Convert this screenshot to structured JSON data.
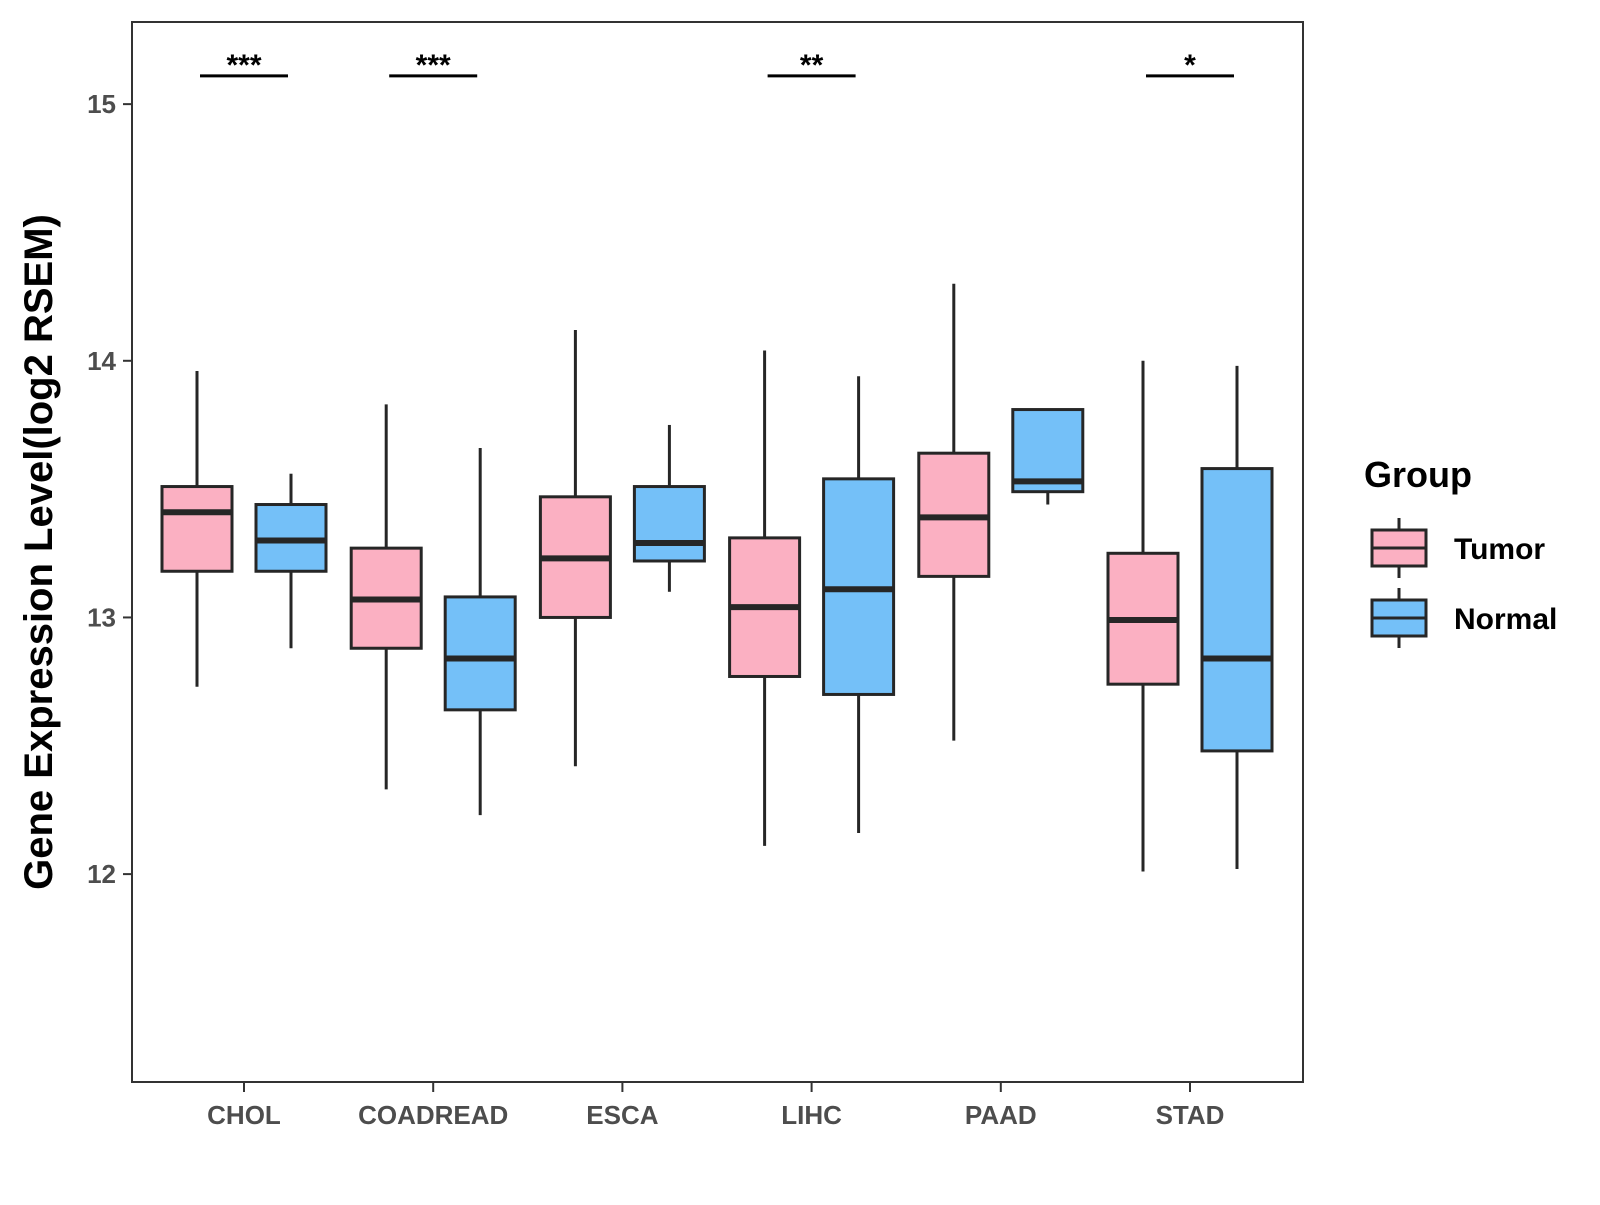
{
  "chart_data": {
    "type": "boxplot",
    "ylabel": "Gene Expression Level(log2 RSEM)",
    "xlabel": "",
    "ylim": [
      11.19,
      15.32
    ],
    "yticks": [
      12,
      13,
      14,
      15
    ],
    "categories": [
      "CHOL",
      "COADREAD",
      "ESCA",
      "LIHC",
      "PAAD",
      "STAD"
    ],
    "legend": {
      "title": "Group",
      "position": "right",
      "entries": [
        {
          "name": "Tumor",
          "color": "#fbb0c2"
        },
        {
          "name": "Normal",
          "color": "#74c0f8"
        }
      ]
    },
    "series": [
      {
        "name": "Tumor",
        "color": "#fbb0c2",
        "boxes": [
          {
            "category": "CHOL",
            "whisker_low": 12.73,
            "q1": 13.18,
            "median": 13.41,
            "q3": 13.51,
            "whisker_high": 13.96
          },
          {
            "category": "COADREAD",
            "whisker_low": 12.33,
            "q1": 12.88,
            "median": 13.07,
            "q3": 13.27,
            "whisker_high": 13.83
          },
          {
            "category": "ESCA",
            "whisker_low": 12.42,
            "q1": 13.0,
            "median": 13.23,
            "q3": 13.47,
            "whisker_high": 14.12
          },
          {
            "category": "LIHC",
            "whisker_low": 12.11,
            "q1": 12.77,
            "median": 13.04,
            "q3": 13.31,
            "whisker_high": 14.04
          },
          {
            "category": "PAAD",
            "whisker_low": 12.52,
            "q1": 13.16,
            "median": 13.39,
            "q3": 13.64,
            "whisker_high": 14.3
          },
          {
            "category": "STAD",
            "whisker_low": 12.01,
            "q1": 12.74,
            "median": 12.99,
            "q3": 13.25,
            "whisker_high": 14.0
          }
        ]
      },
      {
        "name": "Normal",
        "color": "#74c0f8",
        "boxes": [
          {
            "category": "CHOL",
            "whisker_low": 12.88,
            "q1": 13.18,
            "median": 13.3,
            "q3": 13.44,
            "whisker_high": 13.56
          },
          {
            "category": "COADREAD",
            "whisker_low": 12.23,
            "q1": 12.64,
            "median": 12.84,
            "q3": 13.08,
            "whisker_high": 13.66
          },
          {
            "category": "ESCA",
            "whisker_low": 13.1,
            "q1": 13.22,
            "median": 13.29,
            "q3": 13.51,
            "whisker_high": 13.75
          },
          {
            "category": "LIHC",
            "whisker_low": 12.16,
            "q1": 12.7,
            "median": 13.11,
            "q3": 13.54,
            "whisker_high": 13.94
          },
          {
            "category": "PAAD",
            "whisker_low": 13.44,
            "q1": 13.49,
            "median": 13.53,
            "q3": 13.81,
            "whisker_high": 13.81
          },
          {
            "category": "STAD",
            "whisker_low": 12.02,
            "q1": 12.48,
            "median": 12.84,
            "q3": 13.58,
            "whisker_high": 13.98
          }
        ]
      }
    ],
    "significance": [
      {
        "category": "CHOL",
        "label": "***"
      },
      {
        "category": "COADREAD",
        "label": "***"
      },
      {
        "category": "ESCA",
        "label": ""
      },
      {
        "category": "LIHC",
        "label": "**"
      },
      {
        "category": "PAAD",
        "label": ""
      },
      {
        "category": "STAD",
        "label": "*"
      }
    ],
    "significance_y": 15.11,
    "colors": {
      "outline": "#262626",
      "axis_text": "#4d4d4d",
      "panel_border": "#333333"
    }
  }
}
